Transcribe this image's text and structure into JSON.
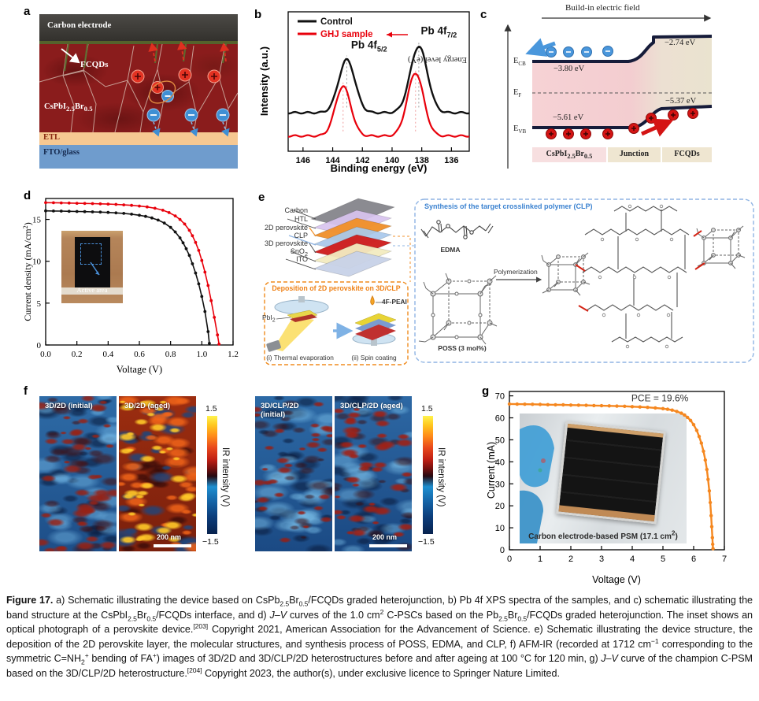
{
  "figure_label": "Figure 17.",
  "panels": {
    "a": {
      "letter": "a",
      "carbon": "Carbon electrode",
      "fcqds": "FCQDs",
      "perovskite_rich": [
        {
          "t": "CsPbI"
        },
        {
          "sub": "2.5"
        },
        {
          "t": "Br"
        },
        {
          "sub": "0.5"
        }
      ],
      "etl": "ETL",
      "fto": "FTO/glass"
    },
    "b": {
      "letter": "b",
      "legend": [
        {
          "label": "Control",
          "color": "#111111"
        },
        {
          "label": "GHJ sample",
          "color": "#e8000b"
        }
      ],
      "xlabel": "Binding energy (eV)",
      "ylabel": "Intensity (a.u.)"
    },
    "c": {
      "letter": "c",
      "field": "Build-in electric field",
      "ylabel": "Energy level (eV)",
      "ecb": {
        "main": "E",
        "sub": "CB"
      },
      "ef": {
        "main": "E",
        "sub": "F"
      },
      "evb": {
        "main": "E",
        "sub": "VB"
      },
      "cb_left": "−3.80 eV",
      "cb_right": "−2.74 eV",
      "vb_left": "−5.61 eV",
      "vb_right": "−5.37 eV",
      "regions": [
        [
          {
            "t": "CsPbI"
          },
          {
            "sub": "2.5"
          },
          {
            "t": "Br"
          },
          {
            "sub": "0.5"
          }
        ],
        [
          {
            "t": "Junction"
          }
        ],
        [
          {
            "t": "FCQDs"
          }
        ]
      ]
    },
    "d": {
      "letter": "d",
      "xlabel": "Voltage (V)",
      "ylabel_pre": "Current density (mA/cm",
      "ylabel_sup": "2",
      "ylabel_post": ")",
      "inset_label": "Active area"
    },
    "e": {
      "letter": "e",
      "layers": [
        [
          {
            "t": "Carbon"
          }
        ],
        [
          {
            "t": "HTL"
          }
        ],
        [
          {
            "t": "2D perovskite"
          }
        ],
        [
          {
            "t": "CLP"
          }
        ],
        [
          {
            "t": "3D perovskite"
          }
        ],
        [
          {
            "t": "SnO"
          },
          {
            "sub": "2"
          }
        ],
        [
          {
            "t": "ITO"
          }
        ]
      ],
      "box1_title": "Deposition of 2D perovskite on 3D/CLP",
      "pbi2": [
        {
          "t": "PbI"
        },
        {
          "sub": "2"
        }
      ],
      "fpeai": "4F-PEAI",
      "step1": "(i) Thermal evaporation",
      "step2": "(ii) Spin coating",
      "box2_title": "Synthesis of the target crosslinked polymer (CLP)",
      "edma": "EDMA",
      "poss": "POSS (3 mol%)",
      "polymerization": "Polymerization"
    },
    "f": {
      "letter": "f",
      "images": [
        {
          "label": "3D/2D (initial)"
        },
        {
          "label": "3D/2D (aged)"
        },
        {
          "label": "3D/CLP/2D (initial)"
        },
        {
          "label": "3D/CLP/2D (aged)"
        }
      ],
      "cbar_max": "1.5",
      "cbar_min": "−1.5",
      "cbar_label": "IR intensity (V)",
      "scalebar": "200 nm"
    },
    "g": {
      "letter": "g",
      "xlabel": "Voltage (V)",
      "ylabel": "Current (mA)",
      "inset_rich": [
        {
          "t": "Carbon electrode-based PSM (17.1 cm"
        },
        {
          "sup": "2"
        },
        {
          "t": ")"
        }
      ]
    }
  },
  "chart_data": [
    {
      "id": "xps",
      "type": "line",
      "xlabel": "Binding energy (eV)",
      "ylabel": "Intensity (a.u.)",
      "xlim": [
        147,
        134.8
      ],
      "ylim": [
        0,
        1.05
      ],
      "xticks": [
        146,
        144,
        142,
        140,
        138,
        136
      ],
      "x_tick_labels": [
        "146",
        "144",
        "142",
        "140",
        "138",
        "136"
      ],
      "yticks": [],
      "series": [
        {
          "name": "Control",
          "color": "#111111",
          "width": 2.4,
          "baseline": 0.29,
          "peaks": [
            {
              "center": 143.05,
              "amp": 0.4,
              "sigma": 0.55
            },
            {
              "center": 138.2,
              "amp": 0.5,
              "sigma": 0.58
            }
          ]
        },
        {
          "name": "GHJ sample",
          "color": "#e8000b",
          "width": 2.2,
          "baseline": 0.115,
          "peaks": [
            {
              "center": 143.3,
              "amp": 0.375,
              "sigma": 0.52
            },
            {
              "center": 138.42,
              "amp": 0.475,
              "sigma": 0.55
            }
          ]
        }
      ],
      "guides": [
        {
          "x": 143.05,
          "y0": 0.33,
          "y1": 0.72,
          "color": "#9a9a9a"
        },
        {
          "x": 143.3,
          "y0": 0.15,
          "y1": 0.52,
          "color": "#f0a0a0"
        },
        {
          "x": 138.2,
          "y0": 0.33,
          "y1": 0.82,
          "color": "#9a9a9a"
        },
        {
          "x": 138.42,
          "y0": 0.15,
          "y1": 0.62,
          "color": "#f0a0a0"
        }
      ],
      "annotations": [
        {
          "x": 141.55,
          "y": 0.775,
          "main": "Pb 4f",
          "sub": "5/2",
          "color": "#111111",
          "size": 13.5,
          "weight": 700
        },
        {
          "x": 136.85,
          "y": 0.88,
          "main": "Pb 4f",
          "sub": "7/2",
          "color": "#111111",
          "size": 13.5,
          "weight": 700
        }
      ]
    },
    {
      "id": "jv_cell",
      "type": "line",
      "xlabel": "Voltage (V)",
      "ylabel": "Current density (mA/cm2)",
      "xlim": [
        0,
        1.2
      ],
      "ylim": [
        0,
        17.5
      ],
      "xticks": [
        0,
        0.2,
        0.4,
        0.6,
        0.8,
        1.0,
        1.2
      ],
      "x_tick_labels": [
        "0.0",
        "0.2",
        "0.4",
        "0.6",
        "0.8",
        "1.0",
        "1.2"
      ],
      "yticks": [
        0,
        5,
        10,
        15
      ],
      "series": [
        {
          "name": "Control",
          "color": "#111111",
          "width": 1.6,
          "markers": true,
          "marker_r": 1.9,
          "points": [
            [
              0,
              16.02
            ],
            [
              0.05,
              16.0
            ],
            [
              0.1,
              15.99
            ],
            [
              0.15,
              15.97
            ],
            [
              0.2,
              15.95
            ],
            [
              0.25,
              15.93
            ],
            [
              0.3,
              15.9
            ],
            [
              0.35,
              15.87
            ],
            [
              0.4,
              15.83
            ],
            [
              0.45,
              15.78
            ],
            [
              0.5,
              15.72
            ],
            [
              0.55,
              15.63
            ],
            [
              0.6,
              15.5
            ],
            [
              0.64,
              15.36
            ],
            [
              0.68,
              15.18
            ],
            [
              0.72,
              14.92
            ],
            [
              0.76,
              14.56
            ],
            [
              0.8,
              14.05
            ],
            [
              0.83,
              13.5
            ],
            [
              0.86,
              12.8
            ],
            [
              0.88,
              12.2
            ],
            [
              0.9,
              11.5
            ],
            [
              0.92,
              10.7
            ],
            [
              0.94,
              9.7
            ],
            [
              0.96,
              8.6
            ],
            [
              0.98,
              7.3
            ],
            [
              1.0,
              5.8
            ],
            [
              1.02,
              4.0
            ],
            [
              1.04,
              1.6
            ],
            [
              1.048,
              0.2
            ]
          ]
        },
        {
          "name": "GHJ",
          "color": "#e8000b",
          "width": 1.6,
          "markers": true,
          "marker_r": 1.9,
          "points": [
            [
              0,
              17.0
            ],
            [
              0.05,
              16.99
            ],
            [
              0.1,
              16.97
            ],
            [
              0.15,
              16.95
            ],
            [
              0.2,
              16.93
            ],
            [
              0.25,
              16.91
            ],
            [
              0.3,
              16.89
            ],
            [
              0.35,
              16.86
            ],
            [
              0.4,
              16.83
            ],
            [
              0.45,
              16.79
            ],
            [
              0.5,
              16.74
            ],
            [
              0.55,
              16.68
            ],
            [
              0.6,
              16.6
            ],
            [
              0.65,
              16.49
            ],
            [
              0.7,
              16.33
            ],
            [
              0.75,
              16.1
            ],
            [
              0.79,
              15.82
            ],
            [
              0.83,
              15.42
            ],
            [
              0.86,
              15.0
            ],
            [
              0.89,
              14.45
            ],
            [
              0.92,
              13.7
            ],
            [
              0.94,
              13.05
            ],
            [
              0.96,
              12.25
            ],
            [
              0.98,
              11.3
            ],
            [
              1.0,
              10.1
            ],
            [
              1.02,
              8.7
            ],
            [
              1.04,
              7.1
            ],
            [
              1.06,
              5.3
            ],
            [
              1.08,
              3.3
            ],
            [
              1.1,
              1.2
            ],
            [
              1.11,
              0.1
            ]
          ]
        }
      ]
    },
    {
      "id": "jv_module",
      "type": "line",
      "xlabel": "Voltage (V)",
      "ylabel": "Current (mA)",
      "xlim": [
        0,
        7
      ],
      "ylim": [
        0,
        72
      ],
      "xticks": [
        0,
        1,
        2,
        3,
        4,
        5,
        6,
        7
      ],
      "x_tick_labels": [
        "0",
        "1",
        "2",
        "3",
        "4",
        "5",
        "6",
        "7"
      ],
      "yticks": [
        0,
        10,
        20,
        30,
        40,
        50,
        60,
        70
      ],
      "series": [
        {
          "name": "C-PSM",
          "color": "#f5871f",
          "width": 2.4,
          "markers": true,
          "marker_r": 2.2,
          "points": [
            [
              0,
              66.3
            ],
            [
              0.25,
              66.25
            ],
            [
              0.5,
              66.2
            ],
            [
              0.75,
              66.15
            ],
            [
              1.0,
              66.1
            ],
            [
              1.25,
              66.0
            ],
            [
              1.5,
              65.95
            ],
            [
              1.75,
              65.9
            ],
            [
              2.0,
              65.8
            ],
            [
              2.25,
              65.75
            ],
            [
              2.5,
              65.7
            ],
            [
              2.75,
              65.6
            ],
            [
              3.0,
              65.5
            ],
            [
              3.25,
              65.45
            ],
            [
              3.5,
              65.35
            ],
            [
              3.75,
              65.25
            ],
            [
              4.0,
              65.1
            ],
            [
              4.25,
              64.95
            ],
            [
              4.5,
              64.75
            ],
            [
              4.75,
              64.5
            ],
            [
              5.0,
              64.2
            ],
            [
              5.15,
              63.9
            ],
            [
              5.3,
              63.5
            ],
            [
              5.45,
              62.9
            ],
            [
              5.6,
              62.1
            ],
            [
              5.7,
              61.3
            ],
            [
              5.8,
              60.2
            ],
            [
              5.9,
              58.8
            ],
            [
              6.0,
              56.9
            ],
            [
              6.1,
              54.3
            ],
            [
              6.18,
              51.5
            ],
            [
              6.25,
              48.5
            ],
            [
              6.32,
              44.8
            ],
            [
              6.38,
              40.8
            ],
            [
              6.43,
              36.5
            ],
            [
              6.47,
              32.0
            ],
            [
              6.51,
              26.8
            ],
            [
              6.54,
              21.5
            ],
            [
              6.57,
              15.5
            ],
            [
              6.59,
              10.5
            ],
            [
              6.61,
              5.5
            ],
            [
              6.62,
              2.5
            ],
            [
              6.63,
              0.5
            ]
          ]
        }
      ],
      "annotations": [
        {
          "x": 4.9,
          "y": 67.6,
          "main": "PCE = 19.6%",
          "color": "#333333",
          "size": 12,
          "weight": 400
        }
      ]
    }
  ],
  "afm_styles": [
    {
      "seed": 7,
      "base": [
        "#2e6ba6",
        "#1d4e88"
      ],
      "blobs": [
        {
          "c": "rgba(150,34,22,0.85)",
          "n": 42,
          "r": [
            2,
            6
          ]
        },
        {
          "c": "rgba(70,12,12,0.55)",
          "n": 26,
          "r": [
            3,
            8
          ]
        },
        {
          "c": "rgba(120,190,235,0.45)",
          "n": 20,
          "r": [
            4,
            11
          ]
        },
        {
          "c": "rgba(10,28,62,0.6)",
          "n": 30,
          "r": [
            3,
            9
          ]
        }
      ]
    },
    {
      "seed": 13,
      "base": [
        "#9c2d10",
        "#7a200c"
      ],
      "blobs": [
        {
          "c": "rgba(255,200,40,0.9)",
          "n": 38,
          "r": [
            2,
            6
          ]
        },
        {
          "c": "rgba(240,100,25,0.85)",
          "n": 34,
          "r": [
            3,
            8
          ]
        },
        {
          "c": "rgba(30,70,125,0.8)",
          "n": 26,
          "r": [
            3,
            9
          ]
        },
        {
          "c": "rgba(45,8,8,0.65)",
          "n": 22,
          "r": [
            3,
            8
          ]
        }
      ]
    },
    {
      "seed": 21,
      "base": [
        "#2d6aa6",
        "#1b4a84"
      ],
      "blobs": [
        {
          "c": "rgba(150,30,20,0.85)",
          "n": 30,
          "r": [
            2,
            5
          ]
        },
        {
          "c": "rgba(60,10,10,0.5)",
          "n": 22,
          "r": [
            2,
            7
          ]
        },
        {
          "c": "rgba(130,200,240,0.45)",
          "n": 22,
          "r": [
            4,
            12
          ]
        },
        {
          "c": "rgba(10,28,62,0.6)",
          "n": 28,
          "r": [
            3,
            9
          ]
        }
      ]
    },
    {
      "seed": 29,
      "base": [
        "#2d68a4",
        "#1a4882"
      ],
      "blobs": [
        {
          "c": "rgba(160,32,20,0.88)",
          "n": 38,
          "r": [
            2,
            6
          ]
        },
        {
          "c": "rgba(60,10,10,0.5)",
          "n": 22,
          "r": [
            2,
            7
          ]
        },
        {
          "c": "rgba(130,200,240,0.4)",
          "n": 20,
          "r": [
            4,
            11
          ]
        },
        {
          "c": "rgba(10,28,62,0.6)",
          "n": 28,
          "r": [
            3,
            9
          ]
        }
      ]
    }
  ],
  "colors": {
    "control_black": "#111111",
    "sample_red": "#e8000b",
    "module_orange": "#f5871f",
    "perovskite_maroon": "#8a1c1c",
    "etl_peach": "#f6c892",
    "fto_blue": "#6f9ccd",
    "electron_blue": "#4a97dc",
    "hole_red": "#d41414",
    "box1_accent": "#ef8218",
    "box2_accent": "#3b82d0"
  },
  "caption_rich": [
    {
      "b": "Figure 17."
    },
    {
      "t": " a) Schematic illustrating the device based on CsPb"
    },
    {
      "sub": "2.5"
    },
    {
      "t": "Br"
    },
    {
      "sub": "0.5"
    },
    {
      "t": "/FCQDs graded heterojunction, b) Pb 4f XPS spectra of the samples, and c) schematic illustrating the band structure at the CsPbI"
    },
    {
      "sub": "2.5"
    },
    {
      "t": "Br"
    },
    {
      "sub": "0.5"
    },
    {
      "t": "/FCQDs interface, and d) "
    },
    {
      "i": "J–V"
    },
    {
      "t": " curves of the 1.0 cm"
    },
    {
      "sup": "2"
    },
    {
      "t": " C-PSCs based on the Pb"
    },
    {
      "sub": "2.5"
    },
    {
      "t": "Br"
    },
    {
      "sub": "0.5"
    },
    {
      "t": "/FCQDs graded heterojunction. The inset shows an optical photograph of a perovskite device."
    },
    {
      "sup": "[203]"
    },
    {
      "t": " Copyright 2021, American Association for the Advancement of Science. e) Schematic illustrating the device structure, the deposition of the 2D perovskite layer, the molecular structures, and synthesis process of POSS, EDMA, and CLP, f) AFM-IR (recorded at 1712 cm"
    },
    {
      "sup": "−1"
    },
    {
      "t": " corresponding to the symmetric C=NH"
    },
    {
      "sub": "2"
    },
    {
      "sup": "+"
    },
    {
      "t": " bending of FA"
    },
    {
      "sup": "+"
    },
    {
      "t": ") images of 3D/2D and 3D/CLP/2D heterostructures before and after ageing at 100 °C for 120 min, g) "
    },
    {
      "i": "J–V"
    },
    {
      "t": " curve of the champion C-PSM based on the 3D/CLP/2D heterostructure."
    },
    {
      "sup": "[204]"
    },
    {
      "t": " Copyright 2023, the author(s), under exclusive licence to Springer Nature Limited."
    }
  ]
}
